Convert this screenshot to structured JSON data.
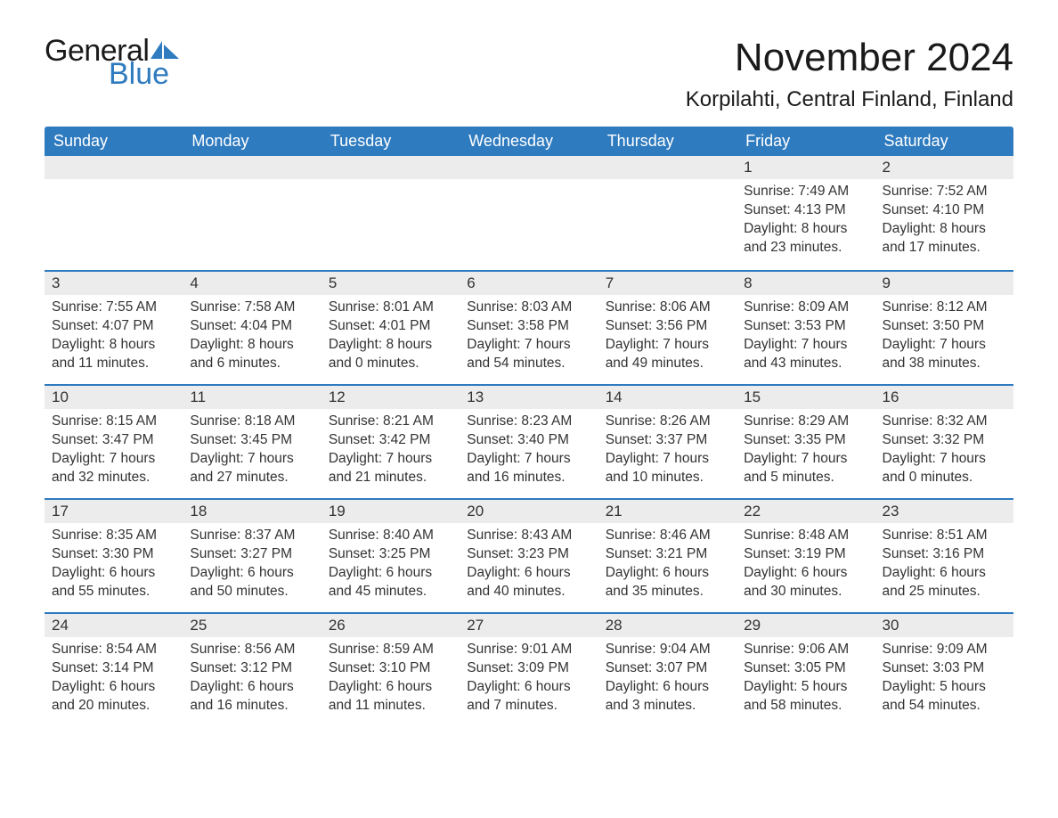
{
  "logo": {
    "text_general": "General",
    "text_blue": "Blue",
    "sail_color": "#2f7bbf"
  },
  "header": {
    "month_title": "November 2024",
    "location": "Korpilahti, Central Finland, Finland"
  },
  "colors": {
    "header_bg": "#2f7bbf",
    "daybar_bg": "#ececec",
    "text": "#333333",
    "row_border": "#2f7bbf",
    "background": "#ffffff"
  },
  "weekdays": [
    "Sunday",
    "Monday",
    "Tuesday",
    "Wednesday",
    "Thursday",
    "Friday",
    "Saturday"
  ],
  "weeks": [
    [
      null,
      null,
      null,
      null,
      null,
      {
        "day": "1",
        "sunrise": "Sunrise: 7:49 AM",
        "sunset": "Sunset: 4:13 PM",
        "daylight1": "Daylight: 8 hours",
        "daylight2": "and 23 minutes."
      },
      {
        "day": "2",
        "sunrise": "Sunrise: 7:52 AM",
        "sunset": "Sunset: 4:10 PM",
        "daylight1": "Daylight: 8 hours",
        "daylight2": "and 17 minutes."
      }
    ],
    [
      {
        "day": "3",
        "sunrise": "Sunrise: 7:55 AM",
        "sunset": "Sunset: 4:07 PM",
        "daylight1": "Daylight: 8 hours",
        "daylight2": "and 11 minutes."
      },
      {
        "day": "4",
        "sunrise": "Sunrise: 7:58 AM",
        "sunset": "Sunset: 4:04 PM",
        "daylight1": "Daylight: 8 hours",
        "daylight2": "and 6 minutes."
      },
      {
        "day": "5",
        "sunrise": "Sunrise: 8:01 AM",
        "sunset": "Sunset: 4:01 PM",
        "daylight1": "Daylight: 8 hours",
        "daylight2": "and 0 minutes."
      },
      {
        "day": "6",
        "sunrise": "Sunrise: 8:03 AM",
        "sunset": "Sunset: 3:58 PM",
        "daylight1": "Daylight: 7 hours",
        "daylight2": "and 54 minutes."
      },
      {
        "day": "7",
        "sunrise": "Sunrise: 8:06 AM",
        "sunset": "Sunset: 3:56 PM",
        "daylight1": "Daylight: 7 hours",
        "daylight2": "and 49 minutes."
      },
      {
        "day": "8",
        "sunrise": "Sunrise: 8:09 AM",
        "sunset": "Sunset: 3:53 PM",
        "daylight1": "Daylight: 7 hours",
        "daylight2": "and 43 minutes."
      },
      {
        "day": "9",
        "sunrise": "Sunrise: 8:12 AM",
        "sunset": "Sunset: 3:50 PM",
        "daylight1": "Daylight: 7 hours",
        "daylight2": "and 38 minutes."
      }
    ],
    [
      {
        "day": "10",
        "sunrise": "Sunrise: 8:15 AM",
        "sunset": "Sunset: 3:47 PM",
        "daylight1": "Daylight: 7 hours",
        "daylight2": "and 32 minutes."
      },
      {
        "day": "11",
        "sunrise": "Sunrise: 8:18 AM",
        "sunset": "Sunset: 3:45 PM",
        "daylight1": "Daylight: 7 hours",
        "daylight2": "and 27 minutes."
      },
      {
        "day": "12",
        "sunrise": "Sunrise: 8:21 AM",
        "sunset": "Sunset: 3:42 PM",
        "daylight1": "Daylight: 7 hours",
        "daylight2": "and 21 minutes."
      },
      {
        "day": "13",
        "sunrise": "Sunrise: 8:23 AM",
        "sunset": "Sunset: 3:40 PM",
        "daylight1": "Daylight: 7 hours",
        "daylight2": "and 16 minutes."
      },
      {
        "day": "14",
        "sunrise": "Sunrise: 8:26 AM",
        "sunset": "Sunset: 3:37 PM",
        "daylight1": "Daylight: 7 hours",
        "daylight2": "and 10 minutes."
      },
      {
        "day": "15",
        "sunrise": "Sunrise: 8:29 AM",
        "sunset": "Sunset: 3:35 PM",
        "daylight1": "Daylight: 7 hours",
        "daylight2": "and 5 minutes."
      },
      {
        "day": "16",
        "sunrise": "Sunrise: 8:32 AM",
        "sunset": "Sunset: 3:32 PM",
        "daylight1": "Daylight: 7 hours",
        "daylight2": "and 0 minutes."
      }
    ],
    [
      {
        "day": "17",
        "sunrise": "Sunrise: 8:35 AM",
        "sunset": "Sunset: 3:30 PM",
        "daylight1": "Daylight: 6 hours",
        "daylight2": "and 55 minutes."
      },
      {
        "day": "18",
        "sunrise": "Sunrise: 8:37 AM",
        "sunset": "Sunset: 3:27 PM",
        "daylight1": "Daylight: 6 hours",
        "daylight2": "and 50 minutes."
      },
      {
        "day": "19",
        "sunrise": "Sunrise: 8:40 AM",
        "sunset": "Sunset: 3:25 PM",
        "daylight1": "Daylight: 6 hours",
        "daylight2": "and 45 minutes."
      },
      {
        "day": "20",
        "sunrise": "Sunrise: 8:43 AM",
        "sunset": "Sunset: 3:23 PM",
        "daylight1": "Daylight: 6 hours",
        "daylight2": "and 40 minutes."
      },
      {
        "day": "21",
        "sunrise": "Sunrise: 8:46 AM",
        "sunset": "Sunset: 3:21 PM",
        "daylight1": "Daylight: 6 hours",
        "daylight2": "and 35 minutes."
      },
      {
        "day": "22",
        "sunrise": "Sunrise: 8:48 AM",
        "sunset": "Sunset: 3:19 PM",
        "daylight1": "Daylight: 6 hours",
        "daylight2": "and 30 minutes."
      },
      {
        "day": "23",
        "sunrise": "Sunrise: 8:51 AM",
        "sunset": "Sunset: 3:16 PM",
        "daylight1": "Daylight: 6 hours",
        "daylight2": "and 25 minutes."
      }
    ],
    [
      {
        "day": "24",
        "sunrise": "Sunrise: 8:54 AM",
        "sunset": "Sunset: 3:14 PM",
        "daylight1": "Daylight: 6 hours",
        "daylight2": "and 20 minutes."
      },
      {
        "day": "25",
        "sunrise": "Sunrise: 8:56 AM",
        "sunset": "Sunset: 3:12 PM",
        "daylight1": "Daylight: 6 hours",
        "daylight2": "and 16 minutes."
      },
      {
        "day": "26",
        "sunrise": "Sunrise: 8:59 AM",
        "sunset": "Sunset: 3:10 PM",
        "daylight1": "Daylight: 6 hours",
        "daylight2": "and 11 minutes."
      },
      {
        "day": "27",
        "sunrise": "Sunrise: 9:01 AM",
        "sunset": "Sunset: 3:09 PM",
        "daylight1": "Daylight: 6 hours",
        "daylight2": "and 7 minutes."
      },
      {
        "day": "28",
        "sunrise": "Sunrise: 9:04 AM",
        "sunset": "Sunset: 3:07 PM",
        "daylight1": "Daylight: 6 hours",
        "daylight2": "and 3 minutes."
      },
      {
        "day": "29",
        "sunrise": "Sunrise: 9:06 AM",
        "sunset": "Sunset: 3:05 PM",
        "daylight1": "Daylight: 5 hours",
        "daylight2": "and 58 minutes."
      },
      {
        "day": "30",
        "sunrise": "Sunrise: 9:09 AM",
        "sunset": "Sunset: 3:03 PM",
        "daylight1": "Daylight: 5 hours",
        "daylight2": "and 54 minutes."
      }
    ]
  ]
}
